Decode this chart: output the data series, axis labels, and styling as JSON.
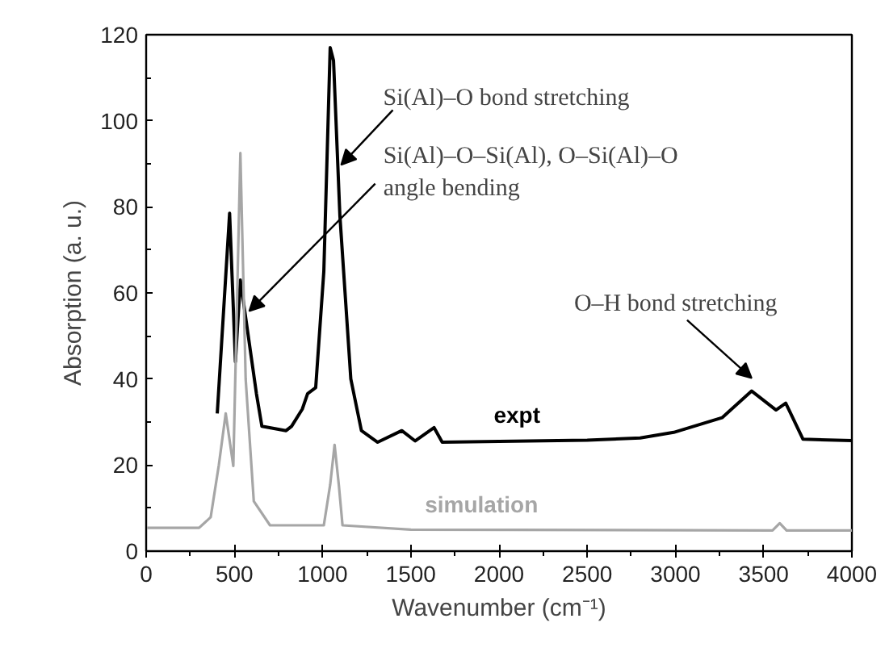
{
  "chart_data": {
    "type": "line",
    "xlabel": "Wavenumber (cm⁻¹)",
    "ylabel": "Absorption (a. u.)",
    "xlim": [
      0,
      4000
    ],
    "ylim": [
      0,
      120
    ],
    "xticks": [
      0,
      500,
      1000,
      1500,
      2000,
      2500,
      3000,
      3500,
      4000
    ],
    "yticks": [
      0,
      20,
      40,
      60,
      80,
      100,
      120
    ],
    "grid": false,
    "series": [
      {
        "name": "expt",
        "color": "#000000",
        "x": [
          403,
          473,
          506,
          534,
          625,
          656,
          793,
          824,
          885,
          915,
          961,
          1007,
          1043,
          1062,
          1098,
          1160,
          1220,
          1312,
          1449,
          1525,
          1632,
          1678,
          2000,
          2500,
          2800,
          2990,
          3264,
          3432,
          3570,
          3625,
          3723,
          4000
        ],
        "values": [
          32,
          78.5,
          44,
          63,
          36.6,
          29,
          28,
          29,
          33,
          36.6,
          38,
          65,
          117,
          114,
          78,
          40,
          28,
          25.3,
          28,
          25.6,
          28.7,
          25.3,
          25.5,
          25.8,
          26.3,
          27.6,
          31,
          37.2,
          32.8,
          34.4,
          26,
          25.7
        ]
      },
      {
        "name": "simulation",
        "color": "#a6a6a6",
        "x": [
          0,
          300,
          366,
          412,
          451,
          494,
          534,
          564,
          610,
          702,
          1007,
          1043,
          1068,
          1092,
          1113,
          1500,
          3550,
          3591,
          3630,
          4000
        ],
        "values": [
          5.4,
          5.4,
          7.9,
          20,
          32,
          19.8,
          92.5,
          40,
          11.6,
          6,
          6,
          15.4,
          24.7,
          15.4,
          6,
          5,
          4.8,
          6.5,
          4.8,
          4.8
        ]
      }
    ],
    "annotations": [
      {
        "text": "Si(Al)–O bond stretching",
        "x": 1087,
        "y": 89
      },
      {
        "text": "Si(Al)–O–Si(Al), O–Si(Al)–O\nangle bending",
        "x": 566,
        "y": 55
      },
      {
        "text": "O–H bond stretching",
        "x": 3432,
        "y": 37.2
      }
    ]
  }
}
